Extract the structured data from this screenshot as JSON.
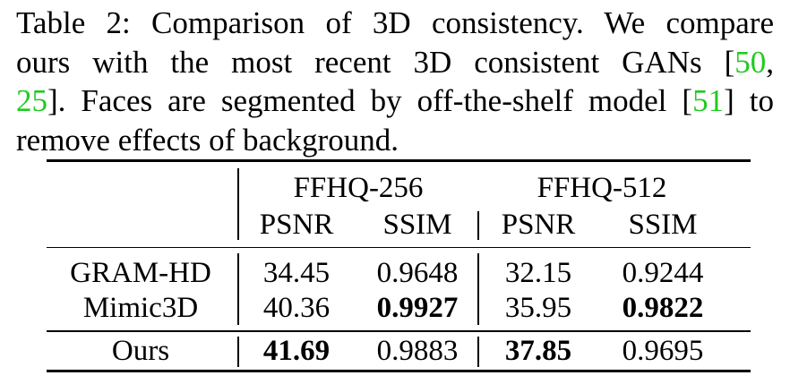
{
  "caption": {
    "line1": "Table 2: Comparison of 3D consistency. We compare",
    "line2_a": "ours with the most recent 3D consistent GANs [",
    "line2_cite": "50",
    "line2_b": ",",
    "line3_cite": "25",
    "line3_a": "]. Faces are segmented by off-the-shelf model [",
    "line3_cite2": "51",
    "line3_b": "] to",
    "line4": "remove effects of background."
  },
  "table": {
    "groups": [
      "FFHQ-256",
      "FFHQ-512"
    ],
    "metrics": [
      "PSNR",
      "SSIM",
      "PSNR",
      "SSIM"
    ],
    "rows": [
      {
        "method": "GRAM-HD",
        "values": [
          "34.45",
          "0.9648",
          "32.15",
          "0.9244"
        ],
        "bold": [
          false,
          false,
          false,
          false
        ]
      },
      {
        "method": "Mimic3D",
        "values": [
          "40.36",
          "0.9927",
          "35.95",
          "0.9822"
        ],
        "bold": [
          false,
          true,
          false,
          true
        ]
      },
      {
        "method": "Ours",
        "values": [
          "41.69",
          "0.9883",
          "37.85",
          "0.9695"
        ],
        "bold": [
          true,
          false,
          true,
          false
        ]
      }
    ]
  }
}
